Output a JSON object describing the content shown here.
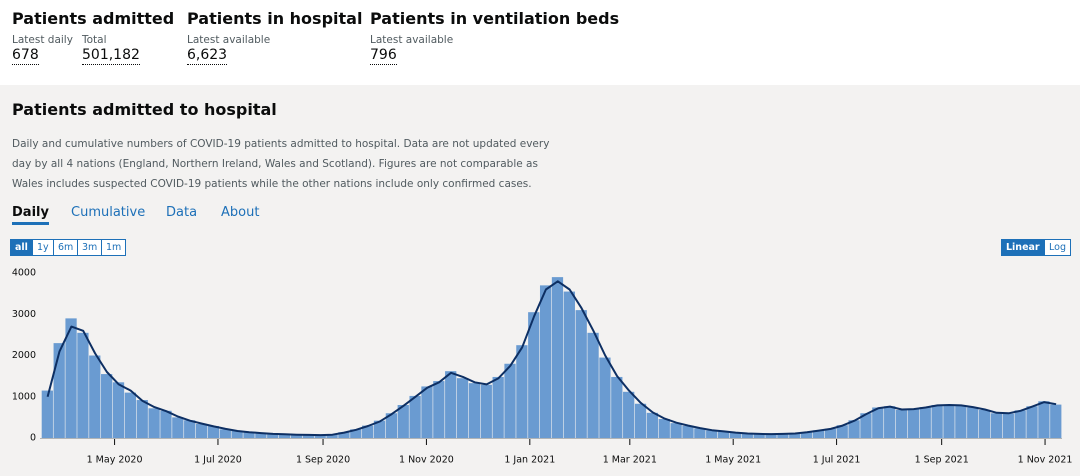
{
  "headline": [
    {
      "title": "Patients admitted",
      "metrics": [
        {
          "label": "Latest daily",
          "value": "678"
        },
        {
          "label": "Total",
          "value": "501,182"
        }
      ]
    },
    {
      "title": "Patients in hospital",
      "metrics": [
        {
          "label": "Latest available",
          "value": "6,623"
        }
      ]
    },
    {
      "title": "Patients in ventilation beds",
      "metrics": [
        {
          "label": "Latest available",
          "value": "796"
        }
      ]
    }
  ],
  "card": {
    "title": "Patients admitted to hospital",
    "description": "Daily and cumulative numbers of COVID-19 patients admitted to hospital. Data are not updated every day by all 4 nations (England, Northern Ireland, Wales and Scotland). Figures are not comparable as Wales includes suspected COVID-19 patients while the other nations include only confirmed cases.",
    "tabs": [
      "Daily",
      "Cumulative",
      "Data",
      "About"
    ],
    "range_buttons": [
      "all",
      "1y",
      "6m",
      "3m",
      "1m"
    ],
    "scale_buttons": [
      "Linear",
      "Log"
    ]
  },
  "chart_data": {
    "type": "bar",
    "color": "#6a9bd1",
    "line_color": "#0d2f63",
    "log_scale": false,
    "grid": false,
    "xlim": [
      "2020-03-18",
      "2021-11-11"
    ],
    "xticks": [
      {
        "value": "2020-05-01",
        "label": "1 May 2020"
      },
      {
        "value": "2020-07-01",
        "label": "1 Jul 2020"
      },
      {
        "value": "2020-09-01",
        "label": "1 Sep 2020"
      },
      {
        "value": "2020-11-01",
        "label": "1 Nov 2020"
      },
      {
        "value": "2021-01-01",
        "label": "1 Jan 2021"
      },
      {
        "value": "2021-03-01",
        "label": "1 Mar 2021"
      },
      {
        "value": "2021-05-01",
        "label": "1 May 2021"
      },
      {
        "value": "2021-07-01",
        "label": "1 Jul 2021"
      },
      {
        "value": "2021-09-01",
        "label": "1 Sep 2021"
      },
      {
        "value": "2021-11-01",
        "label": "1 Nov 2021"
      }
    ],
    "ylim": [
      0,
      4000
    ],
    "yticks": [
      0,
      1000,
      2000,
      3000,
      4000
    ],
    "x": [
      "2020-03-19",
      "2020-03-26",
      "2020-04-02",
      "2020-04-09",
      "2020-04-16",
      "2020-04-23",
      "2020-04-30",
      "2020-05-07",
      "2020-05-14",
      "2020-05-21",
      "2020-05-28",
      "2020-06-04",
      "2020-06-11",
      "2020-06-18",
      "2020-06-25",
      "2020-07-02",
      "2020-07-09",
      "2020-07-16",
      "2020-07-23",
      "2020-07-30",
      "2020-08-06",
      "2020-08-13",
      "2020-08-20",
      "2020-08-27",
      "2020-09-03",
      "2020-09-10",
      "2020-09-17",
      "2020-09-24",
      "2020-10-01",
      "2020-10-08",
      "2020-10-15",
      "2020-10-22",
      "2020-10-29",
      "2020-11-05",
      "2020-11-12",
      "2020-11-19",
      "2020-11-26",
      "2020-12-03",
      "2020-12-10",
      "2020-12-17",
      "2020-12-24",
      "2020-12-31",
      "2021-01-07",
      "2021-01-14",
      "2021-01-21",
      "2021-01-28",
      "2021-02-04",
      "2021-02-11",
      "2021-02-18",
      "2021-02-25",
      "2021-03-04",
      "2021-03-11",
      "2021-03-18",
      "2021-03-25",
      "2021-04-01",
      "2021-04-08",
      "2021-04-15",
      "2021-04-22",
      "2021-04-29",
      "2021-05-06",
      "2021-05-13",
      "2021-05-20",
      "2021-05-27",
      "2021-06-03",
      "2021-06-10",
      "2021-06-17",
      "2021-06-24",
      "2021-07-01",
      "2021-07-08",
      "2021-07-15",
      "2021-07-22",
      "2021-07-29",
      "2021-08-05",
      "2021-08-12",
      "2021-08-19",
      "2021-08-26",
      "2021-09-02",
      "2021-09-09",
      "2021-09-16",
      "2021-09-23",
      "2021-09-30",
      "2021-10-07",
      "2021-10-14",
      "2021-10-21",
      "2021-10-28",
      "2021-11-04"
    ],
    "values": [
      1150,
      2300,
      2900,
      2550,
      2000,
      1550,
      1350,
      1100,
      920,
      720,
      660,
      500,
      430,
      340,
      290,
      210,
      175,
      135,
      125,
      95,
      92,
      78,
      76,
      72,
      85,
      140,
      210,
      300,
      420,
      600,
      800,
      1020,
      1250,
      1380,
      1620,
      1450,
      1330,
      1290,
      1480,
      1800,
      2250,
      3050,
      3700,
      3900,
      3550,
      3100,
      2550,
      1950,
      1480,
      1120,
      830,
      610,
      460,
      360,
      295,
      235,
      185,
      155,
      128,
      108,
      98,
      92,
      102,
      112,
      145,
      185,
      225,
      310,
      430,
      600,
      740,
      770,
      680,
      710,
      750,
      800,
      810,
      780,
      740,
      680,
      600,
      590,
      670,
      770,
      890,
      810
    ],
    "average": [
      1000,
      2100,
      2700,
      2600,
      2050,
      1600,
      1300,
      1150,
      900,
      750,
      650,
      520,
      420,
      350,
      280,
      220,
      170,
      140,
      120,
      100,
      90,
      80,
      75,
      70,
      80,
      130,
      200,
      290,
      400,
      580,
      780,
      1000,
      1220,
      1350,
      1580,
      1480,
      1350,
      1300,
      1450,
      1750,
      2200,
      2950,
      3600,
      3800,
      3600,
      3150,
      2600,
      2000,
      1500,
      1150,
      850,
      620,
      470,
      370,
      300,
      240,
      190,
      160,
      130,
      110,
      100,
      95,
      100,
      110,
      140,
      180,
      220,
      300,
      420,
      580,
      720,
      760,
      690,
      700,
      740,
      790,
      800,
      790,
      750,
      690,
      610,
      600,
      660,
      760,
      870,
      820
    ]
  }
}
